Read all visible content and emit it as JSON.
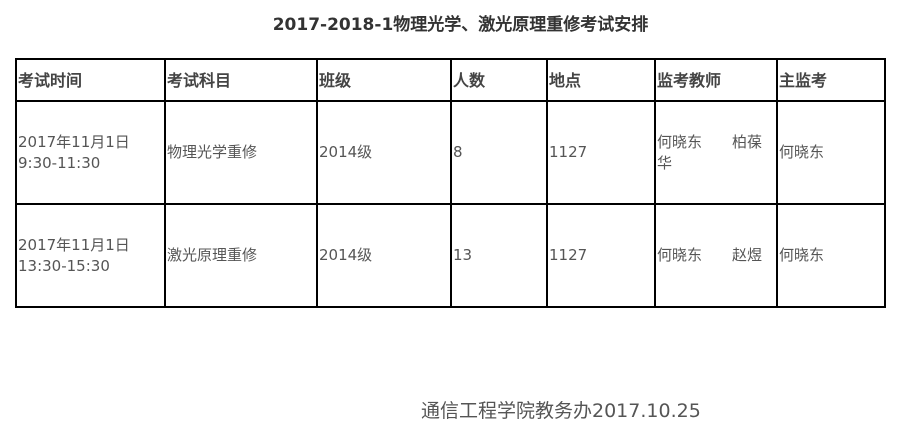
{
  "title": "2017-2018-1物理光学、激光原理重修考试安排",
  "table": {
    "headers": [
      "考试时间",
      "考试科目",
      "班级",
      "人数",
      "地点",
      "监考教师",
      "主监考"
    ],
    "rows": [
      {
        "date": "2017年11月1日",
        "time": "9:30-11:30",
        "subject": "物理光学重修",
        "class": "2014级",
        "count": "8",
        "location": "1127",
        "proctors": "何晓东　　柏葆华",
        "chief": "何晓东"
      },
      {
        "date": "2017年11月1日",
        "time": "13:30-15:30",
        "subject": "激光原理重修",
        "class": "2014级",
        "count": "13",
        "location": "1127",
        "proctors": "何晓东　　赵煜",
        "chief": "何晓东"
      }
    ]
  },
  "footer": "通信工程学院教务办2017.10.25"
}
